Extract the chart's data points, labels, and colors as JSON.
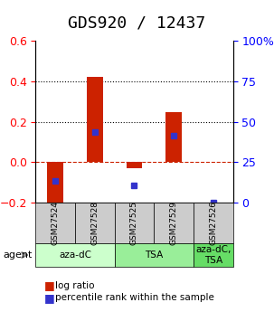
{
  "title": "GDS920 / 12437",
  "samples": [
    "GSM27524",
    "GSM27528",
    "GSM27525",
    "GSM27529",
    "GSM27526"
  ],
  "log_ratios": [
    -0.22,
    0.42,
    -0.03,
    0.245,
    0.0
  ],
  "percentile_ranks": [
    0.135,
    0.435,
    0.11,
    0.415,
    0.0
  ],
  "agent_groups": [
    {
      "label": "aza-dC",
      "start": 0,
      "end": 2,
      "color": "#ccffcc"
    },
    {
      "label": "TSA",
      "start": 2,
      "end": 4,
      "color": "#99ee99"
    },
    {
      "label": "aza-dC,\nTSA",
      "start": 4,
      "end": 5,
      "color": "#66dd66"
    }
  ],
  "ylim_left": [
    -0.2,
    0.6
  ],
  "ylim_right": [
    0,
    100
  ],
  "bar_color": "#cc2200",
  "dot_color": "#3333cc",
  "zero_line_color": "#cc2200",
  "gridline_color": "#000000",
  "title_fontsize": 13,
  "tick_fontsize": 9,
  "label_fontsize": 9,
  "sample_bg_color": "#cccccc",
  "legend_log_ratio": "log ratio",
  "legend_percentile": "percentile rank within the sample"
}
